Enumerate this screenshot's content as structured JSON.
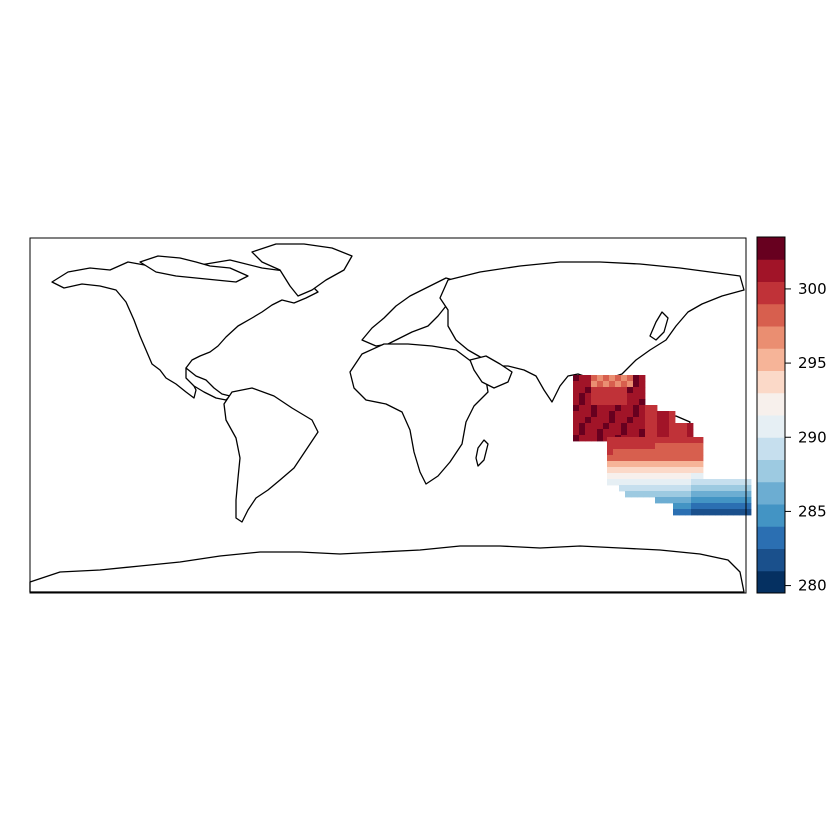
{
  "map": {
    "projection": "equirectangular",
    "lon_range": [
      -180,
      180
    ],
    "lat_range": [
      -90,
      90
    ],
    "field_range": [
      279.5,
      303.5
    ]
  },
  "colorbar": {
    "ticks": [
      "280",
      "285",
      "290",
      "295",
      "300"
    ],
    "tick_values": [
      280,
      285,
      290,
      295,
      300
    ],
    "levels": [
      279.5,
      281,
      282.5,
      284,
      285.5,
      287,
      288.5,
      290,
      291.5,
      293,
      294.5,
      296,
      297.5,
      299,
      300.5,
      302,
      303.5
    ],
    "colors": [
      "#053061",
      "#1a508c",
      "#2b6fb2",
      "#4394c4",
      "#6cadd2",
      "#9dcae1",
      "#c6dfee",
      "#e6eff4",
      "#f7f0ec",
      "#fbd9c8",
      "#f6b498",
      "#ea8e71",
      "#d75f4e",
      "#c03238",
      "#a11428",
      "#67001f"
    ]
  }
}
